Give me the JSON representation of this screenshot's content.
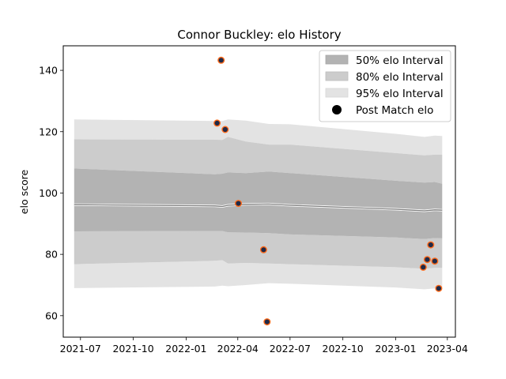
{
  "chart_data": {
    "type": "area",
    "title": "Connor Buckley: elo History",
    "xlabel": "",
    "ylabel": "elo score",
    "xlim": [
      "2021-06-01",
      "2023-04-15"
    ],
    "ylim": [
      53,
      148
    ],
    "x_ticks": [
      "2021-07",
      "2021-10",
      "2022-01",
      "2022-04",
      "2022-07",
      "2022-10",
      "2023-01",
      "2023-04"
    ],
    "y_ticks": [
      60,
      80,
      100,
      120,
      140
    ],
    "grid": false,
    "legend_position": "top-right",
    "legend": [
      "50% elo Interval",
      "80% elo Interval",
      "95% elo Interval",
      "Post Match elo"
    ],
    "band_dates": [
      "2021-06-20",
      "2022-02-20",
      "2022-03-05",
      "2022-03-15",
      "2022-04-15",
      "2022-05-25",
      "2022-07-01",
      "2023-01-01",
      "2023-02-20",
      "2023-03-10",
      "2023-03-23"
    ],
    "mean": [
      96.2,
      95.8,
      95.6,
      96.0,
      96.3,
      96.4,
      96.0,
      94.7,
      94.2,
      94.5,
      94.4
    ],
    "interval_50": {
      "lower": [
        87.5,
        87.6,
        87.6,
        87.2,
        87.1,
        86.9,
        86.5,
        85.5,
        85.0,
        85.3,
        85.2
      ],
      "upper": [
        108.0,
        106.1,
        106.3,
        106.7,
        106.5,
        107.0,
        106.5,
        104.0,
        103.4,
        103.6,
        103.0
      ]
    },
    "interval_80": {
      "lower": [
        76.8,
        77.9,
        78.1,
        77.0,
        77.2,
        77.0,
        76.8,
        75.8,
        75.3,
        75.6,
        75.6
      ],
      "upper": [
        117.5,
        117.4,
        117.3,
        118.3,
        116.8,
        115.8,
        115.8,
        113.0,
        112.3,
        112.5,
        112.5
      ]
    },
    "interval_95": {
      "lower": [
        69.0,
        69.5,
        69.8,
        69.6,
        70.0,
        70.6,
        70.4,
        69.2,
        68.6,
        68.9,
        69.0
      ],
      "upper": [
        124.0,
        123.5,
        123.5,
        124.0,
        123.6,
        122.5,
        122.4,
        119.3,
        118.3,
        118.7,
        118.6
      ]
    },
    "post_match_elo": [
      {
        "date": "2022-02-24",
        "elo": 122.8
      },
      {
        "date": "2022-03-03",
        "elo": 143.3
      },
      {
        "date": "2022-03-10",
        "elo": 120.7
      },
      {
        "date": "2022-04-02",
        "elo": 96.6
      },
      {
        "date": "2022-05-16",
        "elo": 81.5
      },
      {
        "date": "2022-05-22",
        "elo": 58.0
      },
      {
        "date": "2023-02-18",
        "elo": 75.8
      },
      {
        "date": "2023-02-25",
        "elo": 78.3
      },
      {
        "date": "2023-03-03",
        "elo": 83.1
      },
      {
        "date": "2023-03-10",
        "elo": 77.8
      },
      {
        "date": "2023-03-17",
        "elo": 68.9
      }
    ],
    "colors": {
      "interval_50": "#b3b3b3",
      "interval_80": "#cccccc",
      "interval_95": "#e3e3e3",
      "mean_line": "#7f7f7f",
      "point_fill": "#1f2a48",
      "point_edge": "#ff6a1a"
    }
  }
}
